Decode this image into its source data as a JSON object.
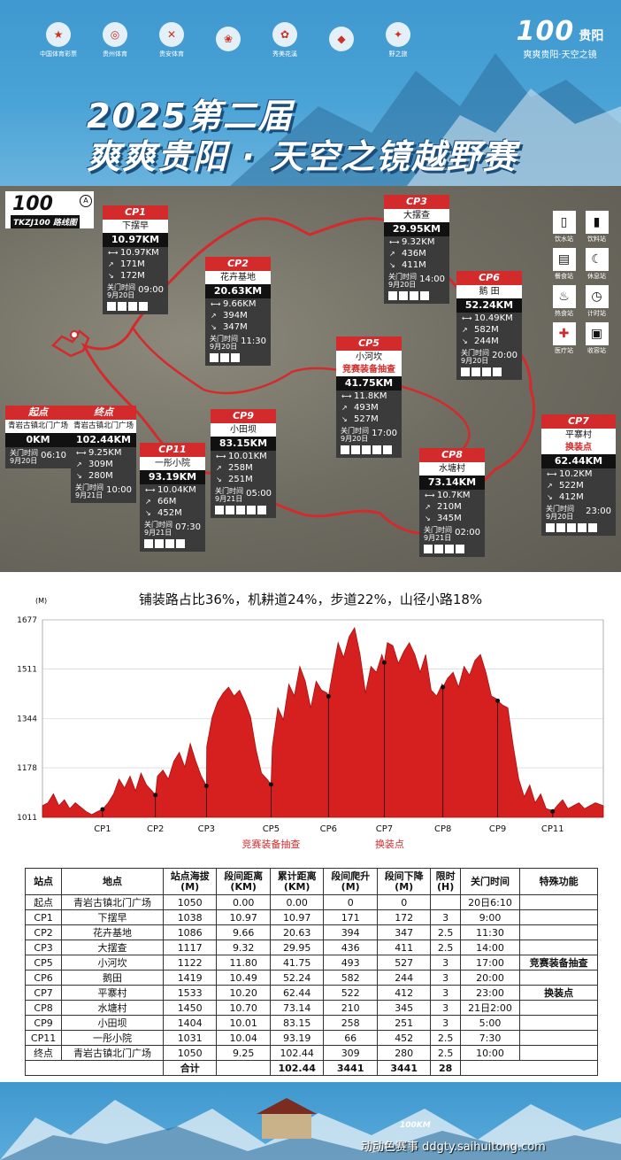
{
  "header": {
    "logos": [
      "中国体育彩票",
      "贵州体育",
      "贵安体育",
      "",
      "秀美花溪",
      "",
      "野之旅"
    ],
    "brand_num": "100",
    "brand_name": "贵阳",
    "brand_slogan": "爽爽贵阳·天空之镜",
    "title_line1": "2025第二届",
    "title_line2": "爽爽贵阳 · 天空之镜越野赛"
  },
  "map": {
    "logo_num": "100",
    "logo_tag": "TKZJ100 路线图",
    "legend": [
      {
        "label": "饮水站",
        "icon": "cup-icon"
      },
      {
        "label": "饮料站",
        "icon": "bottle-icon"
      },
      {
        "label": "餐食站",
        "icon": "meal-icon"
      },
      {
        "label": "休息站",
        "icon": "moon-icon"
      },
      {
        "label": "热食站",
        "icon": "hot-food-icon"
      },
      {
        "label": "计时站",
        "icon": "clock-icon"
      },
      {
        "label": "医疗站",
        "icon": "medical-icon"
      },
      {
        "label": "收容站",
        "icon": "sweep-bus-icon"
      }
    ],
    "checkpoints": [
      {
        "id": "cp1",
        "code": "CP1",
        "name": "下摆早",
        "km": "10.97KM",
        "seg": "10.97KM",
        "up": "171M",
        "down": "172M",
        "gate_label": "关门时间",
        "gate_date": "9月20日",
        "gate_time": "09:00"
      },
      {
        "id": "cp2",
        "code": "CP2",
        "name": "花卉基地",
        "km": "20.63KM",
        "seg": "9.66KM",
        "up": "394M",
        "down": "347M",
        "gate_label": "关门时间",
        "gate_date": "9月20日",
        "gate_time": "11:30"
      },
      {
        "id": "cp3",
        "code": "CP3",
        "name": "大摆查",
        "km": "29.95KM",
        "seg": "9.32KM",
        "up": "436M",
        "down": "411M",
        "gate_label": "关门时间",
        "gate_date": "9月20日",
        "gate_time": "14:00"
      },
      {
        "id": "cp6",
        "code": "CP6",
        "name": "鹅 田",
        "km": "52.24KM",
        "seg": "10.49KM",
        "up": "582M",
        "down": "244M",
        "gate_label": "关门时间",
        "gate_date": "9月20日",
        "gate_time": "20:00"
      },
      {
        "id": "cp5",
        "code": "CP5",
        "name": "小河坎",
        "extra": "竞赛装备抽查",
        "km": "41.75KM",
        "seg": "11.8KM",
        "up": "493M",
        "down": "527M",
        "gate_label": "关门时间",
        "gate_date": "9月20日",
        "gate_time": "17:00"
      },
      {
        "id": "start",
        "code": "起点",
        "name": "青岩古镇北门广场",
        "km": "0KM",
        "gate_label": "关门时间",
        "gate_date": "9月20日",
        "gate_time": "06:10"
      },
      {
        "id": "finish",
        "code": "终点",
        "name": "青岩古镇北门广场",
        "km": "102.44KM",
        "seg": "9.25KM",
        "up": "309M",
        "down": "280M",
        "gate_label": "关门时间",
        "gate_date": "9月21日",
        "gate_time": "10:00"
      },
      {
        "id": "cp9",
        "code": "CP9",
        "name": "小田坝",
        "km": "83.15KM",
        "seg": "10.01KM",
        "up": "258M",
        "down": "251M",
        "gate_label": "关门时间",
        "gate_date": "9月21日",
        "gate_time": "05:00"
      },
      {
        "id": "cp11",
        "code": "CP11",
        "name": "一彤小院",
        "km": "93.19KM",
        "seg": "10.04KM",
        "up": "66M",
        "down": "452M",
        "gate_label": "关门时间",
        "gate_date": "9月21日",
        "gate_time": "07:30"
      },
      {
        "id": "cp8",
        "code": "CP8",
        "name": "水塘村",
        "km": "73.14KM",
        "seg": "10.7KM",
        "up": "210M",
        "down": "345M",
        "gate_label": "关门时间",
        "gate_date": "9月21日",
        "gate_time": "02:00"
      },
      {
        "id": "cp7",
        "code": "CP7",
        "name": "平寨村",
        "extra": "换装点",
        "km": "62.44KM",
        "seg": "10.2KM",
        "up": "522M",
        "down": "412M",
        "gate_label": "关门时间",
        "gate_date": "9月20日",
        "gate_time": "23:00"
      }
    ]
  },
  "elevation": {
    "title": "铺装路占比36%，机耕道24%，步道22%，山径小路18%",
    "unit": "(M)",
    "note_cp5": "竞赛装备抽查",
    "note_cp7": "换装点"
  },
  "chart_data": {
    "type": "area",
    "title": "铺装路占比36%，机耕道24%，步道22%，山径小路18%",
    "ylabel": "(M)",
    "y_ticks": [
      1011,
      1178,
      1344,
      1511,
      1677
    ],
    "ylim": [
      1011,
      1677
    ],
    "xlim": [
      0,
      102.44
    ],
    "x_checkpoints": [
      {
        "label": "CP1",
        "x": 10.97,
        "y": 1038
      },
      {
        "label": "CP2",
        "x": 20.63,
        "y": 1086
      },
      {
        "label": "CP3",
        "x": 29.95,
        "y": 1117
      },
      {
        "label": "CP5",
        "x": 41.75,
        "y": 1122
      },
      {
        "label": "CP6",
        "x": 52.24,
        "y": 1419
      },
      {
        "label": "CP7",
        "x": 62.44,
        "y": 1533
      },
      {
        "label": "CP8",
        "x": 73.14,
        "y": 1450
      },
      {
        "label": "CP9",
        "x": 83.15,
        "y": 1404
      },
      {
        "label": "CP11",
        "x": 93.19,
        "y": 1031
      }
    ],
    "profile": [
      [
        0,
        1050
      ],
      [
        1,
        1060
      ],
      [
        2,
        1090
      ],
      [
        3,
        1050
      ],
      [
        4,
        1070
      ],
      [
        5,
        1040
      ],
      [
        6,
        1060
      ],
      [
        7,
        1045
      ],
      [
        8,
        1030
      ],
      [
        9,
        1020
      ],
      [
        10,
        1030
      ],
      [
        10.97,
        1038
      ],
      [
        12,
        1060
      ],
      [
        13,
        1090
      ],
      [
        14,
        1140
      ],
      [
        15,
        1110
      ],
      [
        16,
        1150
      ],
      [
        17,
        1100
      ],
      [
        18,
        1160
      ],
      [
        19,
        1120
      ],
      [
        20,
        1100
      ],
      [
        20.63,
        1086
      ],
      [
        21,
        1150
      ],
      [
        22,
        1170
      ],
      [
        23,
        1140
      ],
      [
        24,
        1200
      ],
      [
        25,
        1230
      ],
      [
        26,
        1180
      ],
      [
        27,
        1260
      ],
      [
        28,
        1200
      ],
      [
        29,
        1150
      ],
      [
        29.95,
        1117
      ],
      [
        30,
        1250
      ],
      [
        31,
        1350
      ],
      [
        32,
        1400
      ],
      [
        33,
        1430
      ],
      [
        34,
        1450
      ],
      [
        35,
        1420
      ],
      [
        36,
        1440
      ],
      [
        37,
        1400
      ],
      [
        38,
        1350
      ],
      [
        39,
        1240
      ],
      [
        40,
        1160
      ],
      [
        41,
        1140
      ],
      [
        41.75,
        1122
      ],
      [
        42,
        1250
      ],
      [
        43,
        1380
      ],
      [
        44,
        1340
      ],
      [
        45,
        1460
      ],
      [
        46,
        1420
      ],
      [
        47,
        1520
      ],
      [
        48,
        1470
      ],
      [
        49,
        1380
      ],
      [
        50,
        1470
      ],
      [
        51,
        1440
      ],
      [
        52,
        1430
      ],
      [
        52.24,
        1419
      ],
      [
        53,
        1500
      ],
      [
        54,
        1600
      ],
      [
        55,
        1550
      ],
      [
        56,
        1620
      ],
      [
        57,
        1650
      ],
      [
        58,
        1560
      ],
      [
        59,
        1430
      ],
      [
        60,
        1520
      ],
      [
        61,
        1500
      ],
      [
        62,
        1560
      ],
      [
        62.44,
        1533
      ],
      [
        63,
        1600
      ],
      [
        64,
        1590
      ],
      [
        65,
        1530
      ],
      [
        66,
        1570
      ],
      [
        67,
        1600
      ],
      [
        68,
        1560
      ],
      [
        69,
        1500
      ],
      [
        70,
        1560
      ],
      [
        71,
        1440
      ],
      [
        72,
        1420
      ],
      [
        73,
        1460
      ],
      [
        73.14,
        1450
      ],
      [
        74,
        1480
      ],
      [
        75,
        1500
      ],
      [
        76,
        1450
      ],
      [
        77,
        1520
      ],
      [
        78,
        1490
      ],
      [
        79,
        1540
      ],
      [
        80,
        1560
      ],
      [
        81,
        1500
      ],
      [
        82,
        1420
      ],
      [
        83,
        1410
      ],
      [
        83.15,
        1404
      ],
      [
        84,
        1390
      ],
      [
        85,
        1380
      ],
      [
        86,
        1250
      ],
      [
        87,
        1140
      ],
      [
        88,
        1080
      ],
      [
        89,
        1120
      ],
      [
        90,
        1060
      ],
      [
        91,
        1090
      ],
      [
        92,
        1040
      ],
      [
        93,
        1035
      ],
      [
        93.19,
        1031
      ],
      [
        94,
        1050
      ],
      [
        95,
        1070
      ],
      [
        96,
        1040
      ],
      [
        97,
        1050
      ],
      [
        98,
        1060
      ],
      [
        99,
        1040
      ],
      [
        100,
        1050
      ],
      [
        101,
        1060
      ],
      [
        102.44,
        1050
      ]
    ]
  },
  "table": {
    "headers": [
      "站点",
      "地点",
      "站点海拔\n(M)",
      "段间距离\n(KM)",
      "累计距离\n(KM)",
      "段间爬升\n(M)",
      "段间下降\n(M)",
      "限时\n(H)",
      "关门时间",
      "特殊功能"
    ],
    "rows": [
      [
        "起点",
        "青岩古镇北门广场",
        "1050",
        "0.00",
        "0.00",
        "0",
        "0",
        "",
        "20日6:10",
        ""
      ],
      [
        "CP1",
        "下摆早",
        "1038",
        "10.97",
        "10.97",
        "171",
        "172",
        "3",
        "9:00",
        ""
      ],
      [
        "CP2",
        "花卉基地",
        "1086",
        "9.66",
        "20.63",
        "394",
        "347",
        "2.5",
        "11:30",
        ""
      ],
      [
        "CP3",
        "大摆查",
        "1117",
        "9.32",
        "29.95",
        "436",
        "411",
        "2.5",
        "14:00",
        ""
      ],
      [
        "CP5",
        "小河坎",
        "1122",
        "11.80",
        "41.75",
        "493",
        "527",
        "3",
        "17:00",
        "竞赛装备抽查"
      ],
      [
        "CP6",
        "鹅田",
        "1419",
        "10.49",
        "52.24",
        "582",
        "244",
        "3",
        "20:00",
        ""
      ],
      [
        "CP7",
        "平寨村",
        "1533",
        "10.20",
        "62.44",
        "522",
        "412",
        "3",
        "23:00",
        "换装点"
      ],
      [
        "CP8",
        "水塘村",
        "1450",
        "10.70",
        "73.14",
        "210",
        "345",
        "3",
        "21日2:00",
        ""
      ],
      [
        "CP9",
        "小田坝",
        "1404",
        "10.01",
        "83.15",
        "258",
        "251",
        "3",
        "5:00",
        ""
      ],
      [
        "CP11",
        "一彤小院",
        "1031",
        "10.04",
        "93.19",
        "66",
        "452",
        "2.5",
        "7:30",
        ""
      ],
      [
        "终点",
        "青岩古镇北门广场",
        "1050",
        "9.25",
        "102.44",
        "309",
        "280",
        "2.5",
        "10:00",
        ""
      ]
    ],
    "total": {
      "label": "合计",
      "distance": "102.44",
      "up": "3441",
      "down": "3441",
      "hours": "28"
    }
  },
  "footer": {
    "km_label": "100KM",
    "watermark": "动动色赛事 ddgty.saihuitong.com"
  }
}
